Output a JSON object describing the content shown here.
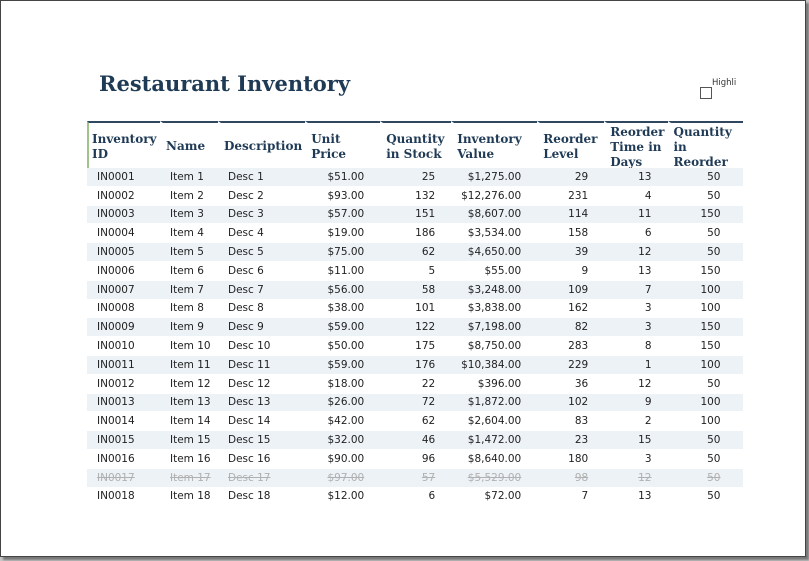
{
  "title": "Restaurant Inventory",
  "highlight_label": "Highlight",
  "highlight_checked": false,
  "columns": [
    "Inventory ID",
    "Name",
    "Description",
    "Unit Price",
    "Quantity in Stock",
    "Inventory Value",
    "Reorder Level",
    "Reorder Time in Days",
    "Quantity in Reorder"
  ],
  "rows": [
    {
      "id": "IN0001",
      "name": "Item 1",
      "desc": "Desc 1",
      "price": "$51.00",
      "qty": "25",
      "value": "$1,275.00",
      "reorder_level": "29",
      "reorder_days": "13",
      "reorder_qty": "50",
      "discontinued": false
    },
    {
      "id": "IN0002",
      "name": "Item 2",
      "desc": "Desc 2",
      "price": "$93.00",
      "qty": "132",
      "value": "$12,276.00",
      "reorder_level": "231",
      "reorder_days": "4",
      "reorder_qty": "50",
      "discontinued": false
    },
    {
      "id": "IN0003",
      "name": "Item 3",
      "desc": "Desc 3",
      "price": "$57.00",
      "qty": "151",
      "value": "$8,607.00",
      "reorder_level": "114",
      "reorder_days": "11",
      "reorder_qty": "150",
      "discontinued": false
    },
    {
      "id": "IN0004",
      "name": "Item 4",
      "desc": "Desc 4",
      "price": "$19.00",
      "qty": "186",
      "value": "$3,534.00",
      "reorder_level": "158",
      "reorder_days": "6",
      "reorder_qty": "50",
      "discontinued": false
    },
    {
      "id": "IN0005",
      "name": "Item 5",
      "desc": "Desc 5",
      "price": "$75.00",
      "qty": "62",
      "value": "$4,650.00",
      "reorder_level": "39",
      "reorder_days": "12",
      "reorder_qty": "50",
      "discontinued": false
    },
    {
      "id": "IN0006",
      "name": "Item 6",
      "desc": "Desc 6",
      "price": "$11.00",
      "qty": "5",
      "value": "$55.00",
      "reorder_level": "9",
      "reorder_days": "13",
      "reorder_qty": "150",
      "discontinued": false
    },
    {
      "id": "IN0007",
      "name": "Item 7",
      "desc": "Desc 7",
      "price": "$56.00",
      "qty": "58",
      "value": "$3,248.00",
      "reorder_level": "109",
      "reorder_days": "7",
      "reorder_qty": "100",
      "discontinued": false
    },
    {
      "id": "IN0008",
      "name": "Item 8",
      "desc": "Desc 8",
      "price": "$38.00",
      "qty": "101",
      "value": "$3,838.00",
      "reorder_level": "162",
      "reorder_days": "3",
      "reorder_qty": "100",
      "discontinued": false
    },
    {
      "id": "IN0009",
      "name": "Item 9",
      "desc": "Desc 9",
      "price": "$59.00",
      "qty": "122",
      "value": "$7,198.00",
      "reorder_level": "82",
      "reorder_days": "3",
      "reorder_qty": "150",
      "discontinued": false
    },
    {
      "id": "IN0010",
      "name": "Item 10",
      "desc": "Desc 10",
      "price": "$50.00",
      "qty": "175",
      "value": "$8,750.00",
      "reorder_level": "283",
      "reorder_days": "8",
      "reorder_qty": "150",
      "discontinued": false
    },
    {
      "id": "IN0011",
      "name": "Item 11",
      "desc": "Desc 11",
      "price": "$59.00",
      "qty": "176",
      "value": "$10,384.00",
      "reorder_level": "229",
      "reorder_days": "1",
      "reorder_qty": "100",
      "discontinued": false
    },
    {
      "id": "IN0012",
      "name": "Item 12",
      "desc": "Desc 12",
      "price": "$18.00",
      "qty": "22",
      "value": "$396.00",
      "reorder_level": "36",
      "reorder_days": "12",
      "reorder_qty": "50",
      "discontinued": false
    },
    {
      "id": "IN0013",
      "name": "Item 13",
      "desc": "Desc 13",
      "price": "$26.00",
      "qty": "72",
      "value": "$1,872.00",
      "reorder_level": "102",
      "reorder_days": "9",
      "reorder_qty": "100",
      "discontinued": false
    },
    {
      "id": "IN0014",
      "name": "Item 14",
      "desc": "Desc 14",
      "price": "$42.00",
      "qty": "62",
      "value": "$2,604.00",
      "reorder_level": "83",
      "reorder_days": "2",
      "reorder_qty": "100",
      "discontinued": false
    },
    {
      "id": "IN0015",
      "name": "Item 15",
      "desc": "Desc 15",
      "price": "$32.00",
      "qty": "46",
      "value": "$1,472.00",
      "reorder_level": "23",
      "reorder_days": "15",
      "reorder_qty": "50",
      "discontinued": false
    },
    {
      "id": "IN0016",
      "name": "Item 16",
      "desc": "Desc 16",
      "price": "$90.00",
      "qty": "96",
      "value": "$8,640.00",
      "reorder_level": "180",
      "reorder_days": "3",
      "reorder_qty": "50",
      "discontinued": false
    },
    {
      "id": "IN0017",
      "name": "Item 17",
      "desc": "Desc 17",
      "price": "$97.00",
      "qty": "57",
      "value": "$5,529.00",
      "reorder_level": "98",
      "reorder_days": "12",
      "reorder_qty": "50",
      "discontinued": true
    },
    {
      "id": "IN0018",
      "name": "Item 18",
      "desc": "Desc 18",
      "price": "$12.00",
      "qty": "6",
      "value": "$72.00",
      "reorder_level": "7",
      "reorder_days": "13",
      "reorder_qty": "50",
      "discontinued": false
    }
  ]
}
